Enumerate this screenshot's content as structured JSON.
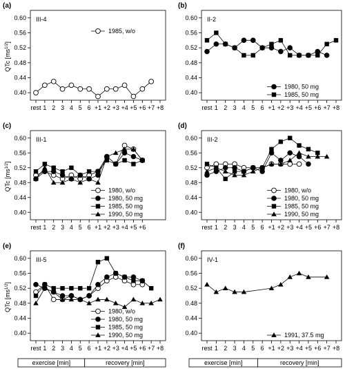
{
  "figure": {
    "y_tick_labels": [
      "0.60",
      "0.56",
      "0.52",
      "0.48",
      "0.44",
      "0.40"
    ],
    "y_axis_label_main": "QTc [ms",
    "y_axis_label_sup": "1/2",
    "y_axis_label_end": "]",
    "footer": {
      "exercise_label": "exercise [min]",
      "recovery_label": "recovery [min]"
    }
  },
  "chart_data": [
    {
      "type": "line",
      "panel": "(a)",
      "subject": "III-4",
      "x_ticks": [
        "rest",
        "1",
        "2",
        "3",
        "4",
        "5",
        "6",
        "+1",
        "+2",
        "+3",
        "+4",
        "+5",
        "+6",
        "+7",
        "+8"
      ],
      "ylim": [
        0.38,
        0.62
      ],
      "ylabel": "QTc [ms1/2]",
      "legend_position": "upper-right",
      "series": [
        {
          "name": "1985, w/o",
          "marker": "open-circle",
          "points": [
            [
              0,
              0.4
            ],
            [
              1,
              0.42
            ],
            [
              2,
              0.43
            ],
            [
              3,
              0.41
            ],
            [
              4,
              0.42
            ],
            [
              5,
              0.41
            ],
            [
              6,
              0.41
            ],
            [
              7,
              0.39
            ],
            [
              8,
              0.41
            ],
            [
              9,
              0.41
            ],
            [
              10,
              0.42
            ],
            [
              11,
              0.39
            ],
            [
              12,
              0.41
            ],
            [
              13,
              0.43
            ]
          ]
        }
      ]
    },
    {
      "type": "line",
      "panel": "(b)",
      "subject": "II-2",
      "x_ticks": [
        "rest",
        "1",
        "2",
        "3",
        "4",
        "5",
        "6",
        "+1",
        "+2",
        "+3",
        "+4",
        "+5",
        "+6",
        "+7",
        "+8"
      ],
      "ylim": [
        0.38,
        0.62
      ],
      "legend_position": "lower-right",
      "series": [
        {
          "name": "1980, 50 mg",
          "marker": "filled-circle",
          "points": [
            [
              0,
              0.51
            ],
            [
              1,
              0.53
            ],
            [
              2,
              0.53
            ],
            [
              3,
              0.52
            ],
            [
              4,
              0.54
            ],
            [
              5,
              0.54
            ],
            [
              6,
              0.52
            ],
            [
              7,
              0.52
            ],
            [
              8,
              0.51
            ],
            [
              9,
              0.52
            ],
            [
              10,
              0.5
            ],
            [
              11,
              0.5
            ],
            [
              12,
              0.51
            ],
            [
              13,
              0.5
            ]
          ]
        },
        {
          "name": "1985, 50 mg",
          "marker": "filled-square",
          "points": [
            [
              0,
              0.54
            ],
            [
              1,
              0.56
            ],
            [
              2,
              0.53
            ],
            [
              3,
              0.52
            ],
            [
              4,
              0.5
            ],
            [
              5,
              0.5
            ],
            [
              6,
              0.52
            ],
            [
              7,
              0.53
            ],
            [
              8,
              0.54
            ],
            [
              9,
              0.5
            ],
            [
              10,
              0.5
            ],
            [
              11,
              0.5
            ],
            [
              12,
              0.5
            ],
            [
              13,
              0.53
            ],
            [
              14,
              0.54
            ]
          ]
        }
      ]
    },
    {
      "type": "line",
      "panel": "(c)",
      "subject": "III-1",
      "x_ticks": [
        "rest",
        "1",
        "2",
        "3",
        "4",
        "5",
        "6",
        "+1",
        "+2",
        "+3",
        "+4",
        "+5",
        "+6"
      ],
      "ylim": [
        0.38,
        0.62
      ],
      "legend_position": "lower-right",
      "series": [
        {
          "name": "1980, w/o",
          "marker": "open-circle",
          "points": [
            [
              0,
              0.5
            ],
            [
              1,
              0.51
            ],
            [
              2,
              0.5
            ],
            [
              3,
              0.49
            ],
            [
              4,
              0.5
            ],
            [
              5,
              0.49
            ],
            [
              6,
              0.5
            ],
            [
              7,
              0.51
            ],
            [
              8,
              0.55
            ],
            [
              9,
              0.53
            ],
            [
              10,
              0.58
            ],
            [
              11,
              0.57
            ],
            [
              12,
              0.54
            ]
          ]
        },
        {
          "name": "1980, 50 mg",
          "marker": "filled-circle",
          "points": [
            [
              0,
              0.49
            ],
            [
              1,
              0.51
            ],
            [
              2,
              0.51
            ],
            [
              3,
              0.5
            ],
            [
              4,
              0.49
            ],
            [
              5,
              0.5
            ],
            [
              6,
              0.49
            ],
            [
              7,
              0.5
            ],
            [
              8,
              0.55
            ],
            [
              9,
              0.53
            ],
            [
              10,
              0.56
            ],
            [
              11,
              0.55
            ],
            [
              12,
              0.54
            ]
          ]
        },
        {
          "name": "1985, 50 mg",
          "marker": "filled-square",
          "points": [
            [
              0,
              0.51
            ],
            [
              1,
              0.53
            ],
            [
              2,
              0.52
            ],
            [
              3,
              0.51
            ],
            [
              4,
              0.52
            ],
            [
              5,
              0.5
            ],
            [
              6,
              0.51
            ],
            [
              7,
              0.51
            ],
            [
              8,
              0.54
            ],
            [
              9,
              0.53
            ],
            [
              10,
              0.54
            ],
            [
              11,
              0.53
            ],
            [
              12,
              0.54
            ]
          ]
        },
        {
          "name": "1990, 50 mg",
          "marker": "filled-triangle",
          "points": [
            [
              0,
              0.49
            ],
            [
              1,
              0.52
            ],
            [
              2,
              0.48
            ],
            [
              3,
              0.48
            ],
            [
              4,
              0.49
            ],
            [
              5,
              0.48
            ],
            [
              6,
              0.49
            ],
            [
              7,
              0.48
            ],
            [
              8,
              0.55
            ],
            [
              9,
              0.56
            ],
            [
              10,
              0.57
            ],
            [
              11,
              0.57
            ],
            [
              12,
              0.54
            ]
          ]
        }
      ]
    },
    {
      "type": "line",
      "panel": "(d)",
      "subject": "III-2",
      "x_ticks": [
        "rest",
        "1",
        "2",
        "3",
        "4",
        "5",
        "6",
        "+1",
        "+2",
        "+3",
        "+4",
        "+5",
        "+6",
        "+7",
        "+8"
      ],
      "ylim": [
        0.38,
        0.62
      ],
      "legend_position": "lower-right",
      "series": [
        {
          "name": "1980, w/o",
          "marker": "open-circle",
          "points": [
            [
              0,
              0.52
            ],
            [
              1,
              0.53
            ],
            [
              2,
              0.53
            ],
            [
              3,
              0.53
            ],
            [
              4,
              0.52
            ],
            [
              5,
              0.52
            ],
            [
              6,
              0.52
            ],
            [
              7,
              0.53
            ],
            [
              8,
              0.53
            ],
            [
              9,
              0.53
            ],
            [
              10,
              0.53
            ]
          ]
        },
        {
          "name": "1980, 50 mg",
          "marker": "filled-circle",
          "points": [
            [
              0,
              0.5
            ],
            [
              1,
              0.51
            ],
            [
              2,
              0.52
            ],
            [
              3,
              0.52
            ],
            [
              4,
              0.51
            ],
            [
              5,
              0.52
            ],
            [
              6,
              0.51
            ],
            [
              7,
              0.56
            ],
            [
              8,
              0.54
            ],
            [
              9,
              0.56
            ],
            [
              10,
              0.55
            ],
            [
              11,
              0.53
            ]
          ]
        },
        {
          "name": "1985, 50 mg",
          "marker": "filled-square",
          "points": [
            [
              0,
              0.53
            ],
            [
              1,
              0.52
            ],
            [
              2,
              0.49
            ],
            [
              3,
              0.51
            ],
            [
              4,
              0.51
            ],
            [
              5,
              0.52
            ],
            [
              6,
              0.52
            ],
            [
              7,
              0.57
            ],
            [
              8,
              0.59
            ],
            [
              9,
              0.6
            ],
            [
              10,
              0.58
            ],
            [
              11,
              0.57
            ],
            [
              12,
              0.56
            ]
          ]
        },
        {
          "name": "1990, 50 mg",
          "marker": "filled-triangle",
          "points": [
            [
              0,
              0.51
            ],
            [
              1,
              0.52
            ],
            [
              2,
              0.51
            ],
            [
              3,
              0.5
            ],
            [
              4,
              0.5
            ],
            [
              5,
              0.51
            ],
            [
              6,
              0.52
            ],
            [
              7,
              0.53
            ],
            [
              8,
              0.53
            ],
            [
              9,
              0.54
            ],
            [
              10,
              0.56
            ],
            [
              11,
              0.55
            ],
            [
              12,
              0.55
            ],
            [
              13,
              0.55
            ]
          ]
        }
      ]
    },
    {
      "type": "line",
      "panel": "(e)",
      "subject": "III-5",
      "x_ticks": [
        "rest",
        "1",
        "2",
        "3",
        "4",
        "5",
        "6",
        "+1",
        "+2",
        "+3",
        "+4",
        "+5",
        "+6",
        "+7",
        "+8"
      ],
      "ylim": [
        0.38,
        0.62
      ],
      "legend_position": "lower-right",
      "series": [
        {
          "name": "1980, w/o",
          "marker": "open-circle",
          "points": [
            [
              0,
              0.51
            ],
            [
              1,
              0.53
            ],
            [
              2,
              0.49
            ],
            [
              3,
              0.49
            ],
            [
              4,
              0.5
            ],
            [
              5,
              0.49
            ],
            [
              6,
              0.5
            ],
            [
              7,
              0.52
            ],
            [
              8,
              0.54
            ],
            [
              9,
              0.55
            ],
            [
              10,
              0.54
            ],
            [
              11,
              0.53
            ],
            [
              12,
              0.53
            ]
          ]
        },
        {
          "name": "1980, 50 mg",
          "marker": "filled-circle",
          "points": [
            [
              0,
              0.53
            ],
            [
              1,
              0.52
            ],
            [
              2,
              0.51
            ],
            [
              3,
              0.5
            ],
            [
              4,
              0.5
            ],
            [
              5,
              0.49
            ],
            [
              6,
              0.5
            ],
            [
              7,
              0.53
            ],
            [
              8,
              0.55
            ],
            [
              9,
              0.56
            ],
            [
              10,
              0.55
            ],
            [
              11,
              0.55
            ],
            [
              12,
              0.54
            ]
          ]
        },
        {
          "name": "1985, 50 mg",
          "marker": "filled-square",
          "points": [
            [
              0,
              0.5
            ],
            [
              1,
              0.53
            ],
            [
              2,
              0.52
            ],
            [
              3,
              0.52
            ],
            [
              4,
              0.52
            ],
            [
              5,
              0.52
            ],
            [
              6,
              0.52
            ],
            [
              7,
              0.59
            ],
            [
              8,
              0.6
            ],
            [
              9,
              0.56
            ],
            [
              10,
              0.55
            ],
            [
              11,
              0.54
            ],
            [
              12,
              0.54
            ],
            [
              13,
              0.52
            ]
          ]
        },
        {
          "name": "1990, 50 mg",
          "marker": "filled-triangle",
          "points": [
            [
              0,
              0.48
            ],
            [
              1,
              0.52
            ],
            [
              2,
              0.51
            ],
            [
              3,
              0.49
            ],
            [
              4,
              0.49
            ],
            [
              5,
              0.49
            ],
            [
              6,
              0.48
            ],
            [
              7,
              0.49
            ],
            [
              8,
              0.49
            ],
            [
              9,
              0.48
            ],
            [
              10,
              0.47
            ],
            [
              11,
              0.49
            ],
            [
              12,
              0.48
            ],
            [
              13,
              0.48
            ],
            [
              14,
              0.49
            ]
          ]
        }
      ]
    },
    {
      "type": "line",
      "panel": "(f)",
      "subject": "IV-1",
      "x_ticks": [
        "rest",
        "1",
        "2",
        "3",
        "4",
        "5",
        "6",
        "+1",
        "+2",
        "+3",
        "+4",
        "+5",
        "+6",
        "+7",
        "+8"
      ],
      "ylim": [
        0.38,
        0.62
      ],
      "legend_position": "lower-right",
      "series": [
        {
          "name": "1991, 37.5 mg",
          "marker": "filled-triangle",
          "points": [
            [
              0,
              0.53
            ],
            [
              1,
              0.51
            ],
            [
              2,
              0.52
            ],
            [
              3,
              0.51
            ],
            [
              4,
              0.51
            ],
            [
              7,
              0.52
            ],
            [
              8,
              0.53
            ],
            [
              9,
              0.55
            ],
            [
              10,
              0.56
            ],
            [
              11,
              0.55
            ],
            [
              13,
              0.55
            ]
          ]
        }
      ]
    }
  ]
}
